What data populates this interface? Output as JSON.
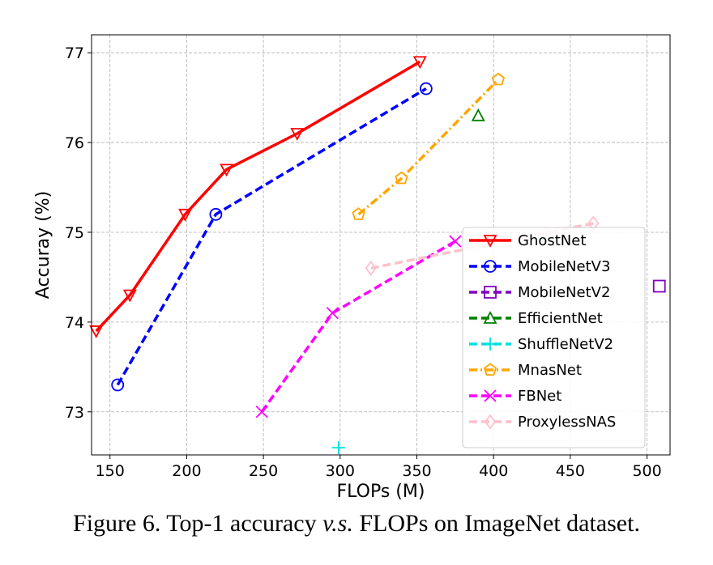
{
  "caption": {
    "prefix": "Figure 6. Top-1 accuracy ",
    "italic": "v.s.",
    "suffix": " FLOPs on ImageNet dataset."
  },
  "chart_data": {
    "type": "line",
    "xlabel": "FLOPs (M)",
    "ylabel": "Accuray (%)",
    "xlim": [
      138,
      515
    ],
    "ylim": [
      72.52,
      77.2
    ],
    "xticks": [
      150,
      200,
      250,
      300,
      350,
      400,
      450,
      500
    ],
    "yticks": [
      73,
      74,
      75,
      76,
      77
    ],
    "grid": true,
    "legend_position": "lower-right",
    "series": [
      {
        "name": "GhostNet",
        "color": "#ff0000",
        "marker": "triangle-down",
        "dash": "solid",
        "x": [
          141,
          163,
          199,
          226,
          272,
          352
        ],
        "y": [
          73.9,
          74.3,
          75.2,
          75.7,
          76.1,
          76.9
        ]
      },
      {
        "name": "MobileNetV3",
        "color": "#0000ff",
        "marker": "circle",
        "dash": "dashed",
        "x": [
          155,
          219,
          356
        ],
        "y": [
          73.3,
          75.2,
          76.6
        ]
      },
      {
        "name": "MobileNetV2",
        "color": "#8000c0",
        "marker": "square",
        "dash": "dashed",
        "x": [
          508
        ],
        "y": [
          74.4
        ]
      },
      {
        "name": "EfficientNet",
        "color": "#008000",
        "marker": "triangle-up",
        "dash": "dashed",
        "x": [
          390
        ],
        "y": [
          76.3
        ]
      },
      {
        "name": "ShuffleNetV2",
        "color": "#00e0e0",
        "marker": "plus",
        "dash": "dashed",
        "x": [
          299
        ],
        "y": [
          72.6
        ]
      },
      {
        "name": "MnasNet",
        "color": "#ffa500",
        "marker": "pentagon",
        "dash": "dashdot",
        "x": [
          312,
          340,
          403
        ],
        "y": [
          75.2,
          75.6,
          76.7
        ]
      },
      {
        "name": "FBNet",
        "color": "#ff00ff",
        "marker": "x",
        "dash": "dashed",
        "x": [
          249,
          295,
          375
        ],
        "y": [
          73.0,
          74.1,
          74.9
        ]
      },
      {
        "name": "ProxylessNAS",
        "color": "#ffc0cb",
        "marker": "diamond",
        "dash": "dashed",
        "x": [
          320,
          465
        ],
        "y": [
          74.6,
          75.1
        ]
      }
    ]
  }
}
